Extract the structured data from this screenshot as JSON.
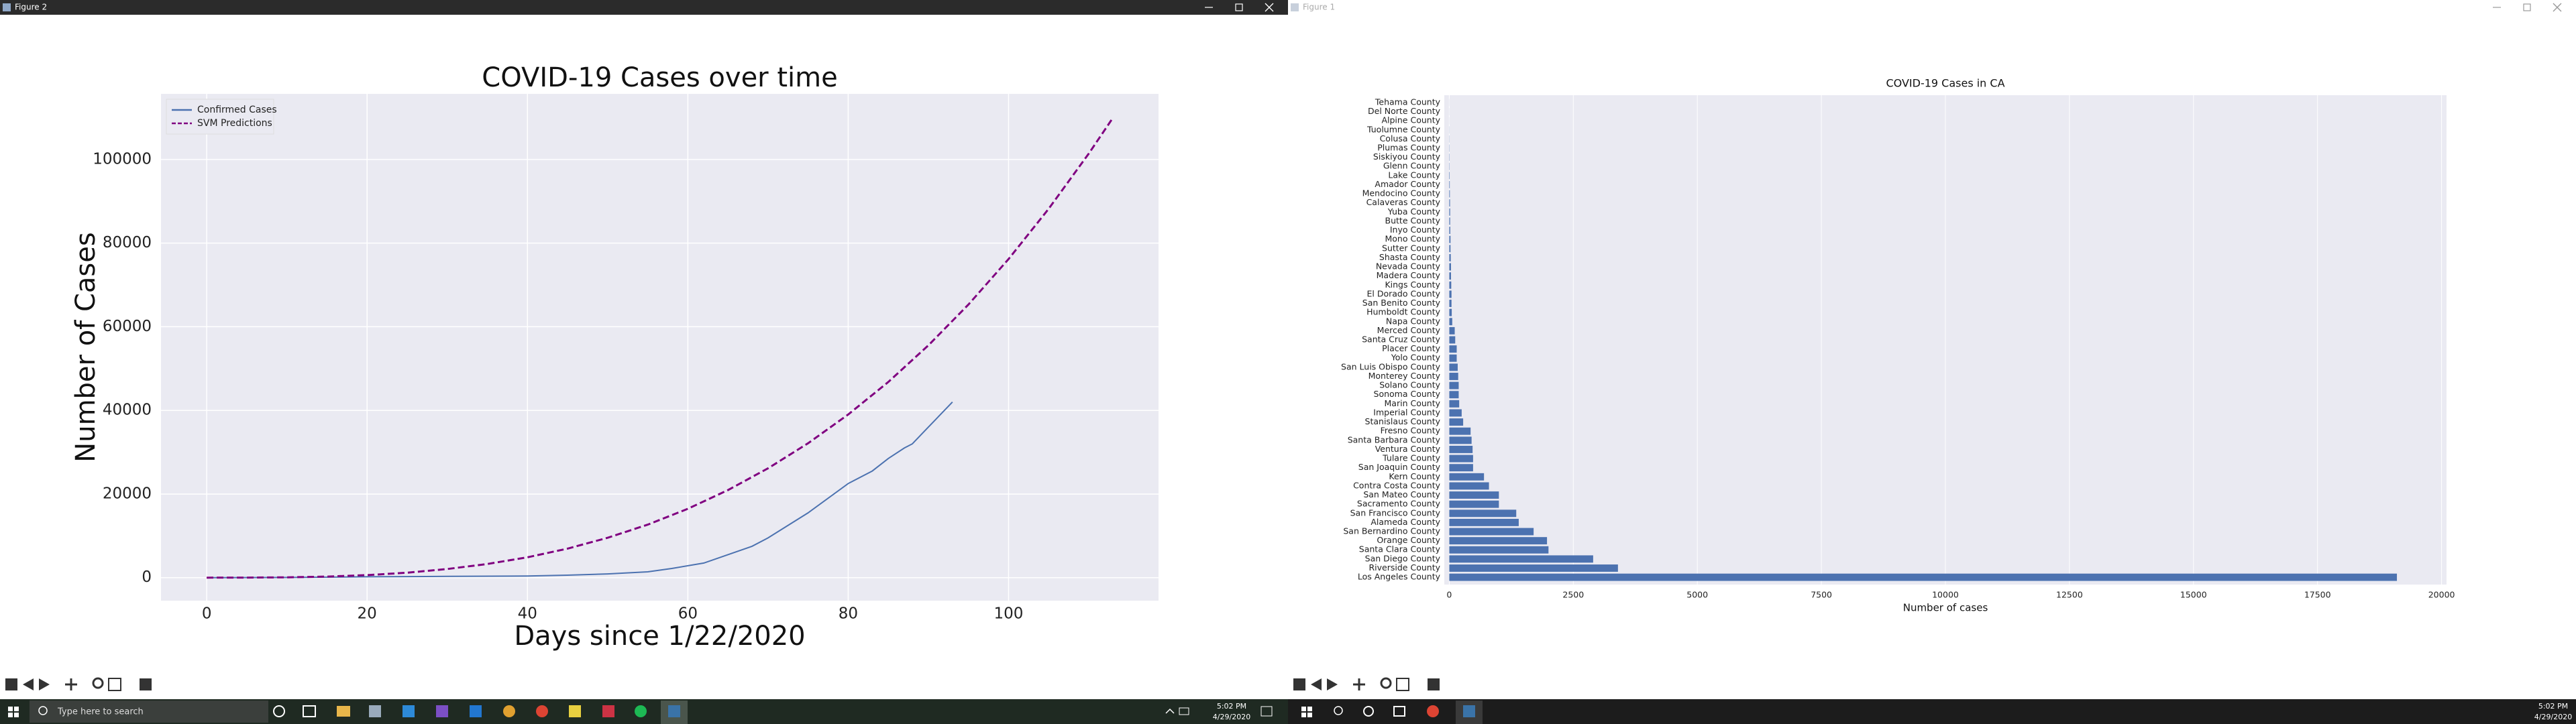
{
  "windows": [
    {
      "title": "Figure 2"
    },
    {
      "title": "Figure 1"
    }
  ],
  "chart_data": [
    {
      "type": "line",
      "title": "COVID-19 Cases over time",
      "xlabel": "Days since 1/22/2020",
      "ylabel": "Number of Cases",
      "xlim": [
        -5.7,
        118.7
      ],
      "ylim": [
        -5500,
        115700
      ],
      "xticks": [
        0,
        20,
        40,
        60,
        80,
        100
      ],
      "yticks": [
        0,
        20000,
        40000,
        60000,
        80000,
        100000
      ],
      "grid": true,
      "legend": "upper left",
      "series": [
        {
          "name": "Confirmed Cases",
          "color": "#4c72b0",
          "style": "solid",
          "x": [
            0,
            10,
            20,
            30,
            40,
            45,
            50,
            55,
            58,
            62,
            65,
            68,
            70,
            75,
            80,
            83,
            85,
            87,
            88,
            90,
            93
          ],
          "values": [
            1,
            50,
            200,
            300,
            400,
            600,
            900,
            1400,
            2200,
            3500,
            5500,
            7500,
            9500,
            15500,
            22500,
            25500,
            28500,
            31000,
            32000,
            36000,
            42000
          ]
        },
        {
          "name": "SVM Predictions",
          "color": "#800080",
          "style": "dashed",
          "x": [
            0,
            5,
            10,
            15,
            20,
            25,
            30,
            35,
            40,
            45,
            50,
            55,
            60,
            65,
            70,
            75,
            80,
            85,
            90,
            95,
            100,
            105,
            110,
            113
          ],
          "values": [
            0,
            10,
            76,
            257,
            610,
            1190,
            2060,
            3270,
            4880,
            6940,
            9530,
            12680,
            16460,
            20930,
            26140,
            32150,
            39020,
            46800,
            55550,
            65330,
            76200,
            88210,
            101420,
            109950
          ]
        }
      ]
    },
    {
      "type": "bar",
      "orientation": "horizontal",
      "title": "COVID-19 Cases in CA",
      "xlabel": "Number of cases",
      "xlim": [
        -100,
        20100
      ],
      "xticks": [
        0,
        2500,
        5000,
        7500,
        10000,
        12500,
        15000,
        17500,
        20000
      ],
      "grid": true,
      "color": "#4c72b0",
      "categories": [
        "Los Angeles County",
        "Riverside County",
        "San Diego County",
        "Santa Clara County",
        "Orange County",
        "San Bernardino County",
        "Alameda County",
        "San Francisco County",
        "Sacramento County",
        "San Mateo County",
        "Contra Costa County",
        "Kern County",
        "San Joaquin County",
        "Tulare County",
        "Ventura County",
        "Santa Barbara County",
        "Fresno County",
        "Stanislaus County",
        "Imperial County",
        "Marin County",
        "Sonoma County",
        "Solano County",
        "Monterey County",
        "San Luis Obispo County",
        "Yolo County",
        "Placer County",
        "Santa Cruz County",
        "Merced County",
        "Napa County",
        "Humboldt County",
        "San Benito County",
        "El Dorado County",
        "Kings County",
        "Madera County",
        "Nevada County",
        "Shasta County",
        "Sutter County",
        "Mono County",
        "Inyo County",
        "Butte County",
        "Yuba County",
        "Calaveras County",
        "Mendocino County",
        "Amador County",
        "Lake County",
        "Glenn County",
        "Siskiyou County",
        "Plumas County",
        "Colusa County",
        "Tuolumne County",
        "Alpine County",
        "Del Norte County",
        "Tehama County"
      ],
      "values": [
        19100,
        3400,
        2900,
        2000,
        1970,
        1700,
        1400,
        1350,
        1000,
        1000,
        800,
        700,
        480,
        480,
        470,
        450,
        430,
        280,
        250,
        200,
        190,
        190,
        180,
        170,
        150,
        150,
        120,
        110,
        60,
        50,
        45,
        45,
        40,
        35,
        35,
        30,
        25,
        25,
        20,
        17,
        17,
        15,
        12,
        10,
        8,
        5,
        5,
        4,
        3,
        2,
        1,
        1,
        1
      ]
    }
  ],
  "taskbar": {
    "search": "Type here to search",
    "clocks": [
      {
        "time": "5:02 PM",
        "date": "4/29/2020"
      },
      {
        "time": "5:02 PM",
        "date": "4/29/2020"
      }
    ]
  }
}
